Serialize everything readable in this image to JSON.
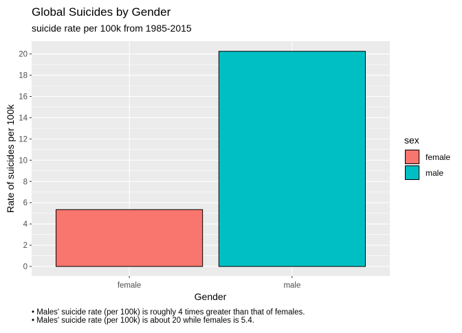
{
  "chart_data": {
    "type": "bar",
    "title": "Global Suicides by Gender",
    "subtitle": "suicide rate per 100k from 1985-2015",
    "xlabel": "Gender",
    "ylabel": "Rate of suicides per 100k",
    "categories": [
      "female",
      "male"
    ],
    "values": [
      5.35,
      20.25
    ],
    "ylim": [
      -0.9,
      21.2
    ],
    "yticks": [
      0,
      2,
      4,
      6,
      8,
      10,
      12,
      14,
      16,
      18,
      20
    ],
    "grid": true,
    "legend": {
      "title": "sex",
      "position": "right",
      "entries": [
        {
          "label": "female",
          "color": "#F8766D"
        },
        {
          "label": "male",
          "color": "#00BFC4"
        }
      ]
    },
    "colors": {
      "female": "#F8766D",
      "male": "#00BFC4"
    },
    "caption": [
      "• Males' suicide rate (per 100k) is roughly 4 times greater than that of females.",
      "• Males' suicide rate (per 100k) is about 20 while females is 5.4."
    ]
  }
}
